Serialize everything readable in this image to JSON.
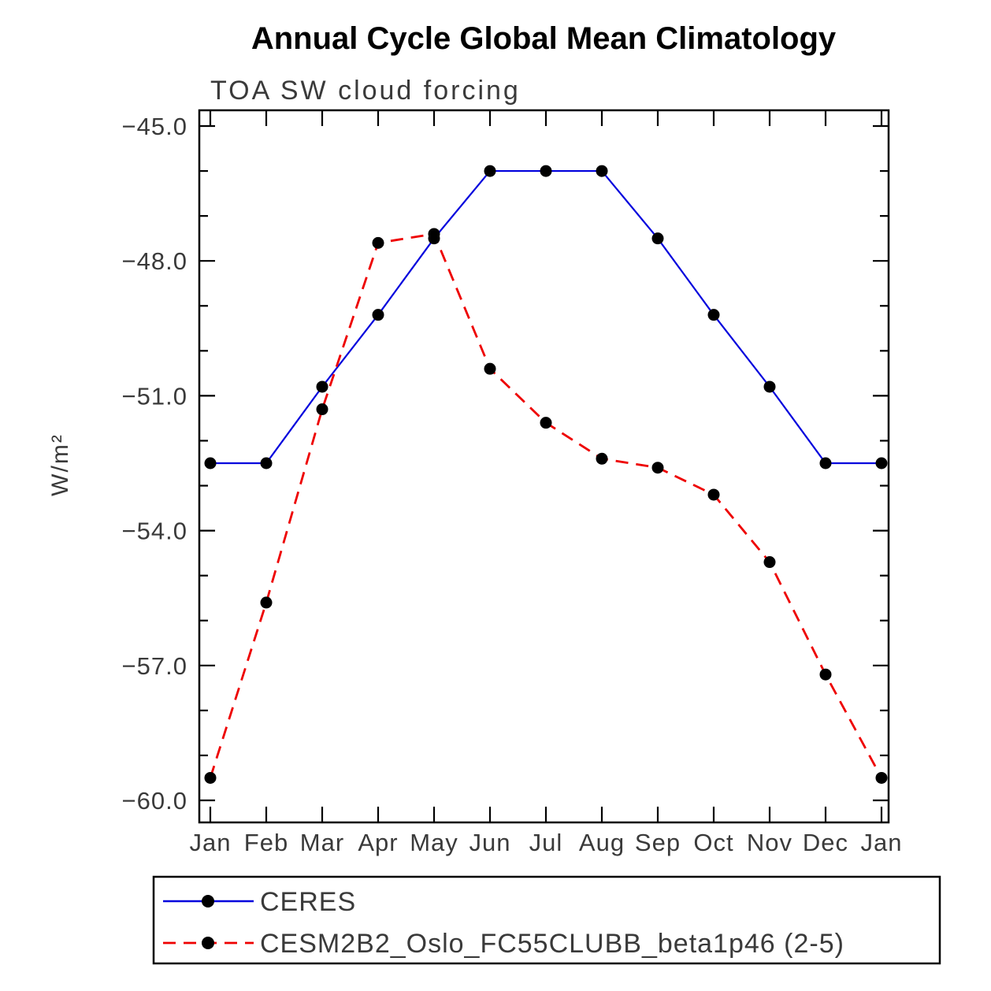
{
  "chart_data": {
    "type": "line",
    "title": "Annual Cycle Global Mean Climatology",
    "subtitle": "TOA SW cloud forcing",
    "ylabel": "W/m²",
    "categories": [
      "Jan",
      "Feb",
      "Mar",
      "Apr",
      "May",
      "Jun",
      "Jul",
      "Aug",
      "Sep",
      "Oct",
      "Nov",
      "Dec",
      "Jan"
    ],
    "ylim": [
      -60.0,
      -45.0
    ],
    "yticks": [
      -45.0,
      -48.0,
      -51.0,
      -54.0,
      -57.0,
      -60.0
    ],
    "ytick_labels": [
      "−45.0",
      "−48.0",
      "−51.0",
      "−54.0",
      "−57.0",
      "−60.0"
    ],
    "grid": false,
    "legend_position": "bottom",
    "marker": {
      "shape": "circle",
      "color": "#000000"
    },
    "series": [
      {
        "name": "CERES",
        "color": "#0000dd",
        "line_style": "solid",
        "values": [
          -52.5,
          -52.5,
          -50.8,
          -49.2,
          -47.5,
          -46.0,
          -46.0,
          -46.0,
          -47.5,
          -49.2,
          -50.8,
          -52.5,
          -52.5
        ]
      },
      {
        "name": "CESM2B2_Oslo_FC55CLUBB_beta1p46 (2-5)",
        "color": "#ee0000",
        "line_style": "dashed",
        "values": [
          -59.5,
          -55.6,
          -51.3,
          -47.6,
          -47.4,
          -50.4,
          -51.6,
          -52.4,
          -52.6,
          -53.2,
          -54.7,
          -57.2,
          -59.5
        ]
      }
    ]
  }
}
